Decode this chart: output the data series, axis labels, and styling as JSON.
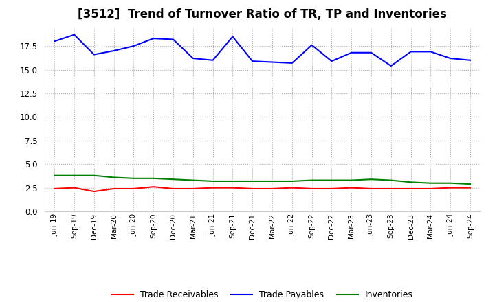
{
  "title": "[3512]  Trend of Turnover Ratio of TR, TP and Inventories",
  "x_labels": [
    "Jun-19",
    "Sep-19",
    "Dec-19",
    "Mar-20",
    "Jun-20",
    "Sep-20",
    "Dec-20",
    "Mar-21",
    "Jun-21",
    "Sep-21",
    "Dec-21",
    "Mar-22",
    "Jun-22",
    "Sep-22",
    "Dec-22",
    "Mar-23",
    "Jun-23",
    "Sep-23",
    "Dec-23",
    "Mar-24",
    "Jun-24",
    "Sep-24"
  ],
  "trade_receivables": [
    2.4,
    2.5,
    2.1,
    2.4,
    2.4,
    2.6,
    2.4,
    2.4,
    2.5,
    2.5,
    2.4,
    2.4,
    2.5,
    2.4,
    2.4,
    2.5,
    2.4,
    2.4,
    2.4,
    2.4,
    2.5,
    2.5
  ],
  "trade_payables": [
    18.0,
    18.7,
    16.6,
    17.0,
    17.5,
    18.3,
    18.2,
    16.2,
    16.0,
    18.5,
    15.9,
    15.8,
    15.7,
    17.6,
    15.9,
    16.8,
    16.8,
    15.4,
    16.9,
    16.9,
    16.2,
    16.0
  ],
  "inventories": [
    3.8,
    3.8,
    3.8,
    3.6,
    3.5,
    3.5,
    3.4,
    3.3,
    3.2,
    3.2,
    3.2,
    3.2,
    3.2,
    3.3,
    3.3,
    3.3,
    3.4,
    3.3,
    3.1,
    3.0,
    3.0,
    2.9
  ],
  "ylim": [
    0,
    19.5
  ],
  "yticks": [
    0.0,
    2.5,
    5.0,
    7.5,
    10.0,
    12.5,
    15.0,
    17.5
  ],
  "color_tr": "#ff0000",
  "color_tp": "#0000ff",
  "color_inv": "#008000",
  "legend_labels": [
    "Trade Receivables",
    "Trade Payables",
    "Inventories"
  ],
  "background_color": "#ffffff",
  "grid_color": "#aaaaaa",
  "title_fontsize": 12
}
